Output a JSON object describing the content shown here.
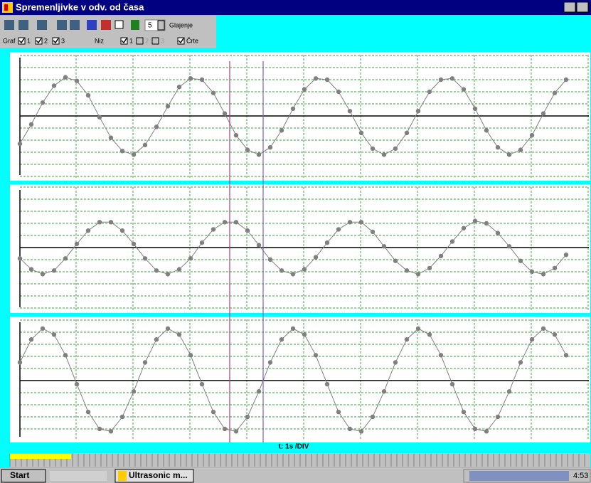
{
  "window": {
    "title": "Spremenljivke v odv. od časa"
  },
  "toolbar": {
    "smoothing_value": "5",
    "smoothing_label": "Glajenje",
    "graph_label": "Graf",
    "graph_checks": [
      {
        "label": "1",
        "checked": true
      },
      {
        "label": "2",
        "checked": true
      },
      {
        "label": "3",
        "checked": true
      }
    ],
    "series_label": "Niz",
    "series_checks": [
      {
        "label": "1",
        "checked": true
      },
      {
        "label": "2",
        "checked": false
      },
      {
        "label": "3",
        "checked": false
      }
    ],
    "lines_label": "Črte",
    "lines_checked": true
  },
  "graphs": [
    {
      "color": "#808080",
      "values": [
        -2.3,
        -0.7,
        1.1,
        2.5,
        3.2,
        2.9,
        1.7,
        -0.1,
        -1.8,
        -2.9,
        -3.2,
        -2.4,
        -0.9,
        0.8,
        2.4,
        3.1,
        3.0,
        1.9,
        0.2,
        -1.6,
        -2.8,
        -3.2,
        -2.6,
        -1.2,
        0.6,
        2.2,
        3.1,
        3.0,
        2.0,
        0.4,
        -1.4,
        -2.7,
        -3.2,
        -2.7,
        -1.4,
        0.4,
        2.0,
        3.0,
        3.1,
        2.2,
        0.6,
        -1.2,
        -2.6,
        -3.2,
        -2.8,
        -1.6,
        0.2,
        1.9,
        3.0
      ]
    },
    {
      "color": "#808080",
      "values": [
        -0.9,
        -1.8,
        -2.2,
        -1.9,
        -0.9,
        0.3,
        1.4,
        2.1,
        2.1,
        1.4,
        0.3,
        -0.9,
        -1.9,
        -2.2,
        -1.8,
        -0.9,
        0.4,
        1.5,
        2.1,
        2.1,
        1.4,
        0.2,
        -1.0,
        -1.9,
        -2.2,
        -1.8,
        -0.8,
        0.4,
        1.5,
        2.1,
        2.1,
        1.3,
        0.1,
        -1.1,
        -1.9,
        -2.2,
        -1.7,
        -0.7,
        0.5,
        1.6,
        2.2,
        2.0,
        1.2,
        0.1,
        -1.1,
        -2.0,
        -2.2,
        -1.7,
        -0.6
      ]
    },
    {
      "color": "#808080",
      "values": [
        1.5,
        3.4,
        4.3,
        3.8,
        2.1,
        -0.3,
        -2.6,
        -4.0,
        -4.2,
        -3.0,
        -0.9,
        1.5,
        3.4,
        4.3,
        3.8,
        2.1,
        -0.3,
        -2.6,
        -4.0,
        -4.2,
        -3.0,
        -0.9,
        1.5,
        3.4,
        4.3,
        3.8,
        2.1,
        -0.3,
        -2.6,
        -4.0,
        -4.2,
        -3.0,
        -0.9,
        1.5,
        3.4,
        4.3,
        3.8,
        2.1,
        -0.3,
        -2.6,
        -4.0,
        -4.2,
        -3.0,
        -0.9,
        1.5,
        3.4,
        4.3,
        3.8,
        2.1
      ]
    }
  ],
  "x_axis_label": "t: 1s /DIV",
  "taskbar": {
    "start": "Start",
    "task": "Ultrasonic m...",
    "clock": "4:53"
  }
}
